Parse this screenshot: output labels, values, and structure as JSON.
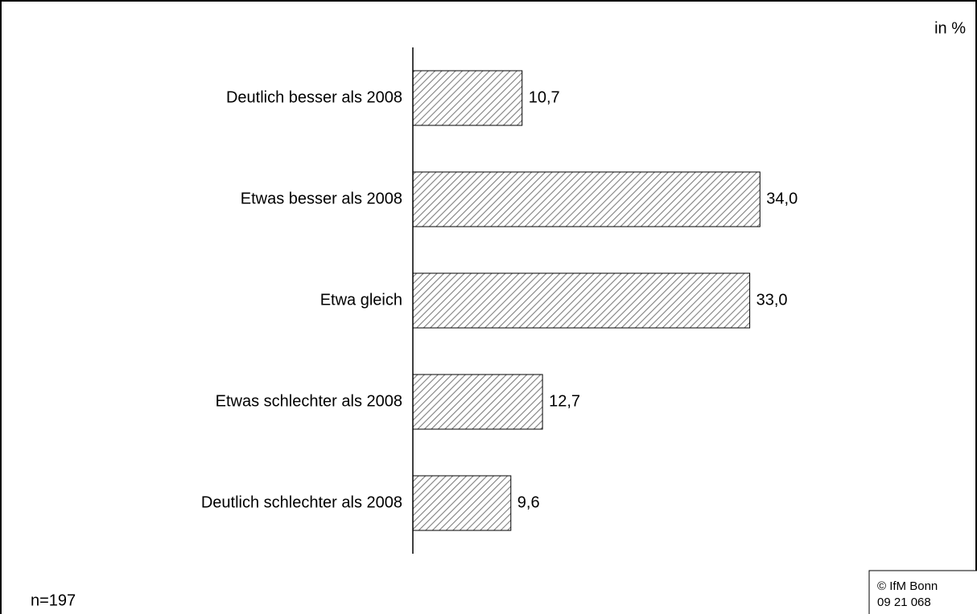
{
  "chart_data": {
    "type": "bar",
    "orientation": "horizontal",
    "unit_label": "in %",
    "categories": [
      "Deutlich besser als 2008",
      "Etwas besser als 2008",
      "Etwa gleich",
      "Etwas schlechter als 2008",
      "Deutlich schlechter als 2008"
    ],
    "values": [
      10.7,
      34.0,
      33.0,
      12.7,
      9.6
    ],
    "value_labels": [
      "10,7",
      "34,0",
      "33,0",
      "12,7",
      "9,6"
    ],
    "color": "#7f7f7f",
    "xlim": [
      0,
      54
    ],
    "note": "n=197",
    "source": [
      "© IfM Bonn",
      "09 21 068"
    ]
  }
}
